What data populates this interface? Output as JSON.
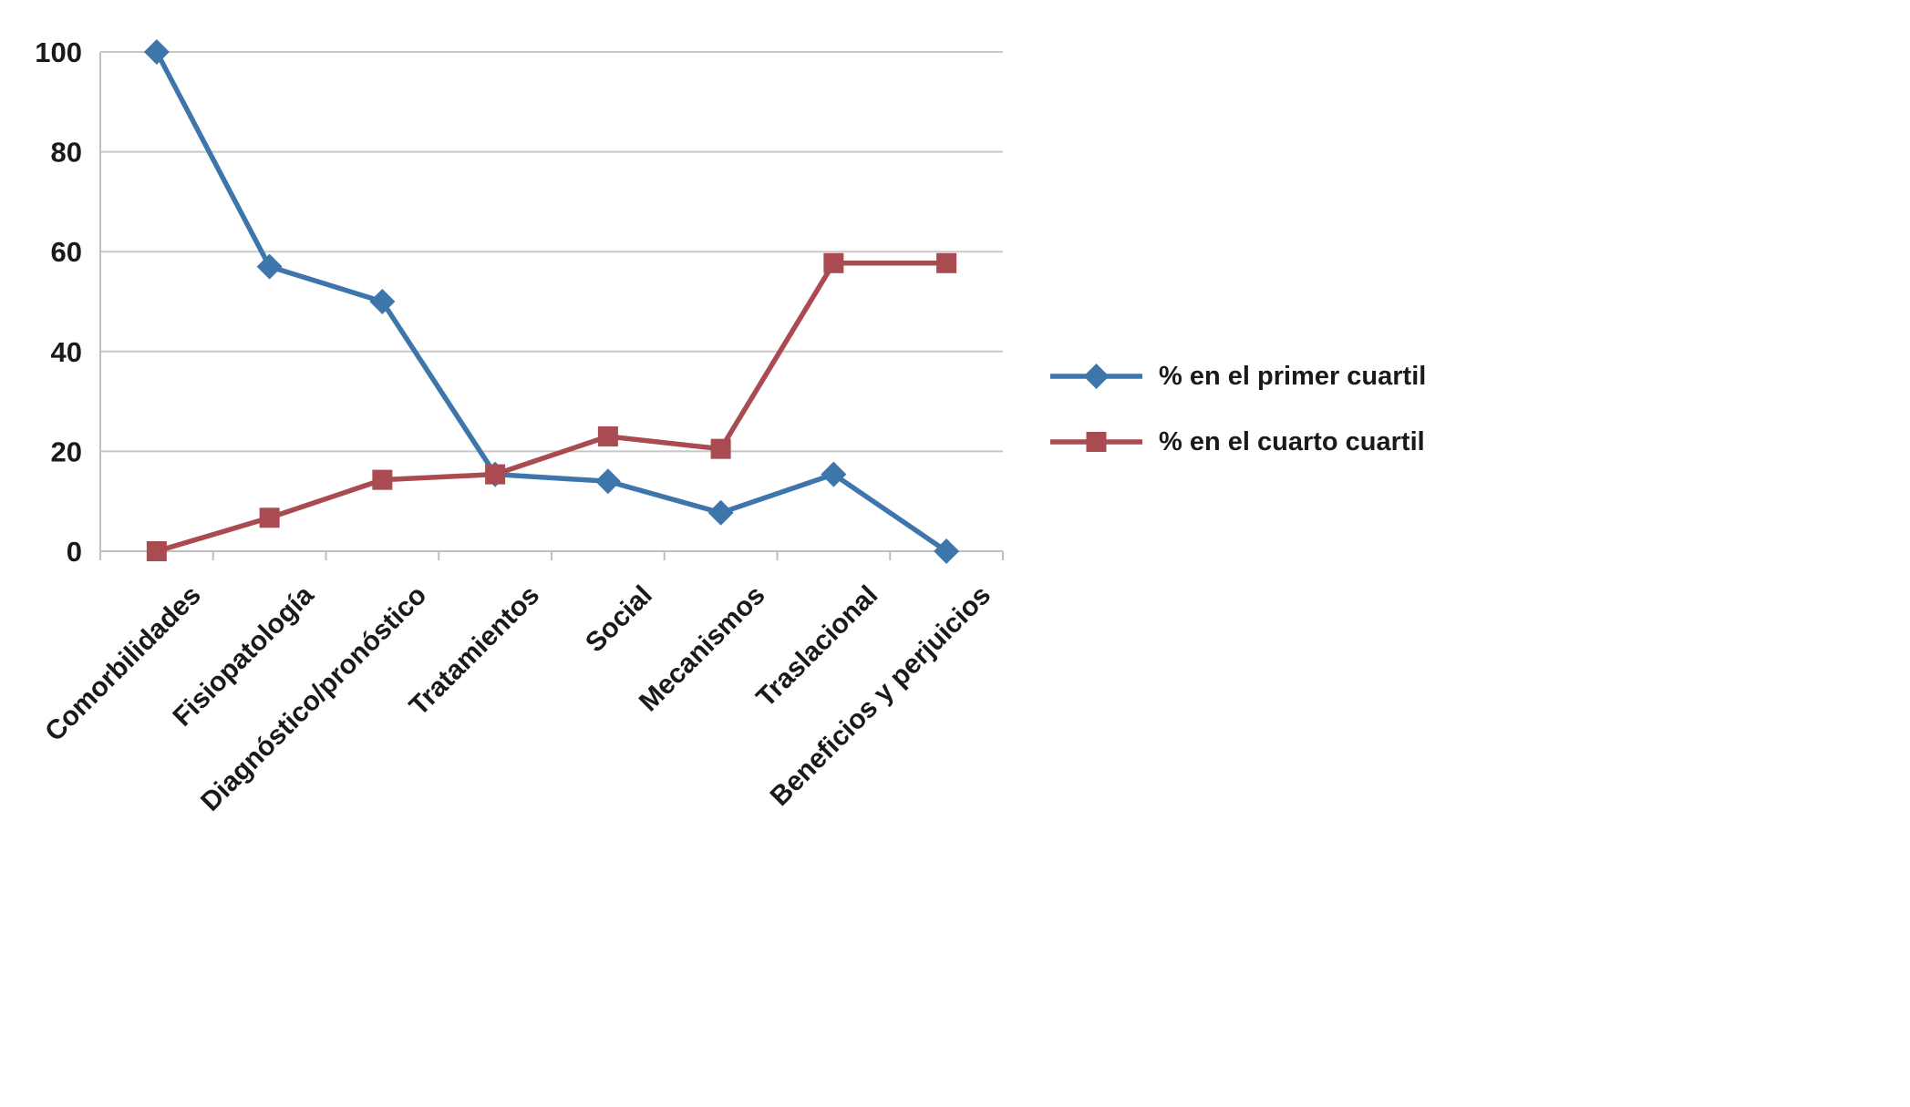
{
  "chart_data": {
    "type": "line",
    "title": "",
    "xlabel": "",
    "ylabel": "",
    "categories": [
      "Comorbilidades",
      "Fisiopatología",
      "Diagnóstico/pronóstico",
      "Tratamientos",
      "Social",
      "Mecanismos",
      "Traslacional",
      "Beneficios y perjuicios"
    ],
    "series": [
      {
        "id": "primer-cuartil",
        "name": "% en el primer cuartil",
        "color": "#3E76AC",
        "marker": "diamond",
        "values": [
          100,
          57,
          50,
          15.4,
          14,
          7.7,
          15.4,
          0
        ]
      },
      {
        "id": "cuarto-cuartil",
        "name": "% en el cuarto cuartil",
        "color": "#A94B50",
        "marker": "square",
        "values": [
          0,
          6.7,
          14.3,
          15.4,
          23,
          20.5,
          57.7,
          57.7
        ]
      }
    ],
    "ylim": [
      0,
      100
    ],
    "yticks": [
      0,
      20,
      40,
      60,
      80,
      100
    ],
    "grid": true,
    "legend_position": "right",
    "grid_color": "#C8C8C8",
    "axis_color": "#BFBFBF",
    "text_color": "#1A1A1A"
  }
}
